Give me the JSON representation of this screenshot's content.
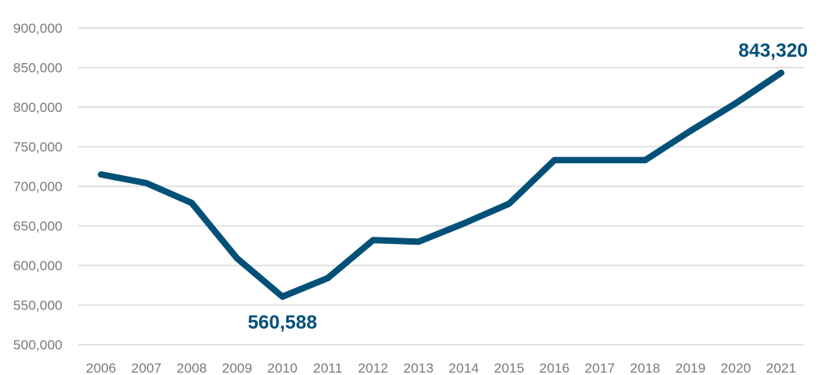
{
  "chart_data": {
    "type": "line",
    "title": "",
    "xlabel": "",
    "ylabel": "",
    "categories": [
      "2006",
      "2007",
      "2008",
      "2009",
      "2010",
      "2011",
      "2012",
      "2013",
      "2014",
      "2015",
      "2016",
      "2017",
      "2018",
      "2019",
      "2020",
      "2021"
    ],
    "series": [
      {
        "values": [
          715000,
          704000,
          679000,
          609000,
          560588,
          584000,
          632000,
          630000,
          653000,
          678000,
          733000,
          733000,
          733000,
          770000,
          805000,
          843320
        ]
      }
    ],
    "ylim": [
      500000,
      900000
    ],
    "yticks": [
      "500,000",
      "550,000",
      "600,000",
      "650,000",
      "700,000",
      "750,000",
      "800,000",
      "850,000",
      "900,000"
    ],
    "grid": true,
    "legend": "none",
    "annotations": [
      {
        "category": "2010",
        "text": "560,588"
      },
      {
        "category": "2021",
        "text": "843,320"
      }
    ],
    "colors": {
      "line": "#005078",
      "label": "#005078",
      "grid": "#d9d9d9",
      "tick": "#7a7a7a"
    }
  }
}
